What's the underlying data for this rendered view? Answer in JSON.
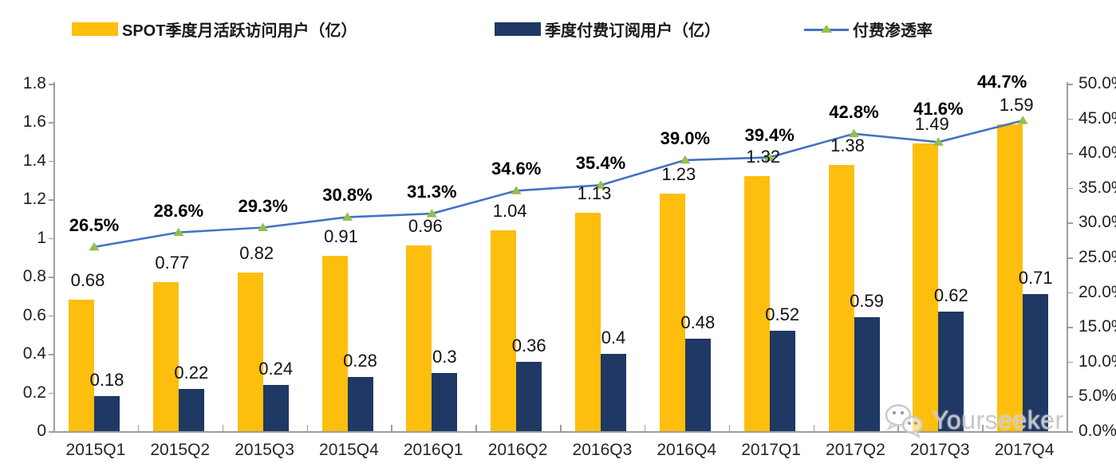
{
  "legend": {
    "items": [
      {
        "label": "SPOT季度月活跃访问用户（亿）",
        "swatch": "bar"
      },
      {
        "label": "季度付费订阅用户（亿）",
        "swatch": "bar"
      },
      {
        "label": "付费渗透率",
        "swatch": "line-marker"
      }
    ]
  },
  "watermark": {
    "text": "Yourseeker",
    "icon": "wechat-icon"
  },
  "colors": {
    "mau_bar": "#FDBE0D",
    "subs_bar": "#1F3864",
    "line": "#4472C4",
    "marker": "#97BF4A",
    "axis": "#9e9e9e",
    "watermark": "#C6C6C6"
  },
  "chart_data": {
    "type": "bar",
    "subtype": "grouped-bars-with-line",
    "title": "",
    "xlabel": "",
    "ylabel_left": "",
    "ylabel_right": "",
    "grid": false,
    "legend_position": "top",
    "categories": [
      "2015Q1",
      "2015Q2",
      "2015Q3",
      "2015Q4",
      "2016Q1",
      "2016Q2",
      "2016Q3",
      "2016Q4",
      "2017Q1",
      "2017Q2",
      "2017Q3",
      "2017Q4"
    ],
    "series": [
      {
        "name": "SPOT季度月活跃访问用户（亿）",
        "type": "bar",
        "axis": "left",
        "color": "#FDBE0D",
        "values": [
          0.68,
          0.77,
          0.82,
          0.91,
          0.96,
          1.04,
          1.13,
          1.23,
          1.32,
          1.38,
          1.49,
          1.59
        ],
        "value_labels": [
          "0.68",
          "0.77",
          "0.82",
          "0.91",
          "0.96",
          "1.04",
          "1.13",
          "1.23",
          "1.32",
          "1.38",
          "1.49",
          "1.59"
        ]
      },
      {
        "name": "季度付费订阅用户（亿）",
        "type": "bar",
        "axis": "left",
        "color": "#1F3864",
        "values": [
          0.18,
          0.22,
          0.24,
          0.28,
          0.3,
          0.36,
          0.4,
          0.48,
          0.52,
          0.59,
          0.62,
          0.71
        ],
        "value_labels": [
          "0.18",
          "0.22",
          "0.24",
          "0.28",
          "0.3",
          "0.36",
          "0.4",
          "0.48",
          "0.52",
          "0.59",
          "0.62",
          "0.71"
        ]
      },
      {
        "name": "付费渗透率",
        "type": "line",
        "axis": "right",
        "color": "#4472C4",
        "marker": "triangle",
        "marker_color": "#97BF4A",
        "values": [
          26.5,
          28.6,
          29.3,
          30.8,
          31.3,
          34.6,
          35.4,
          39.0,
          39.4,
          42.8,
          41.6,
          44.7
        ],
        "value_labels": [
          "26.5%",
          "28.6%",
          "29.3%",
          "30.8%",
          "31.3%",
          "34.6%",
          "35.4%",
          "39.0%",
          "39.4%",
          "42.8%",
          "41.6%",
          "44.7%"
        ]
      }
    ],
    "left_axis": {
      "min": 0,
      "max": 1.8,
      "ticks": [
        "1.8",
        "1.6",
        "1.4",
        "1.2",
        "1",
        "0.8",
        "0.6",
        "0.4",
        "0.2",
        "0"
      ]
    },
    "right_axis": {
      "min": 0,
      "max": 50,
      "ticks": [
        "50.0%",
        "45.0%",
        "40.0%",
        "35.0%",
        "30.0%",
        "25.0%",
        "20.0%",
        "15.0%",
        "10.0%",
        "5.0%",
        "0.0%"
      ]
    }
  }
}
